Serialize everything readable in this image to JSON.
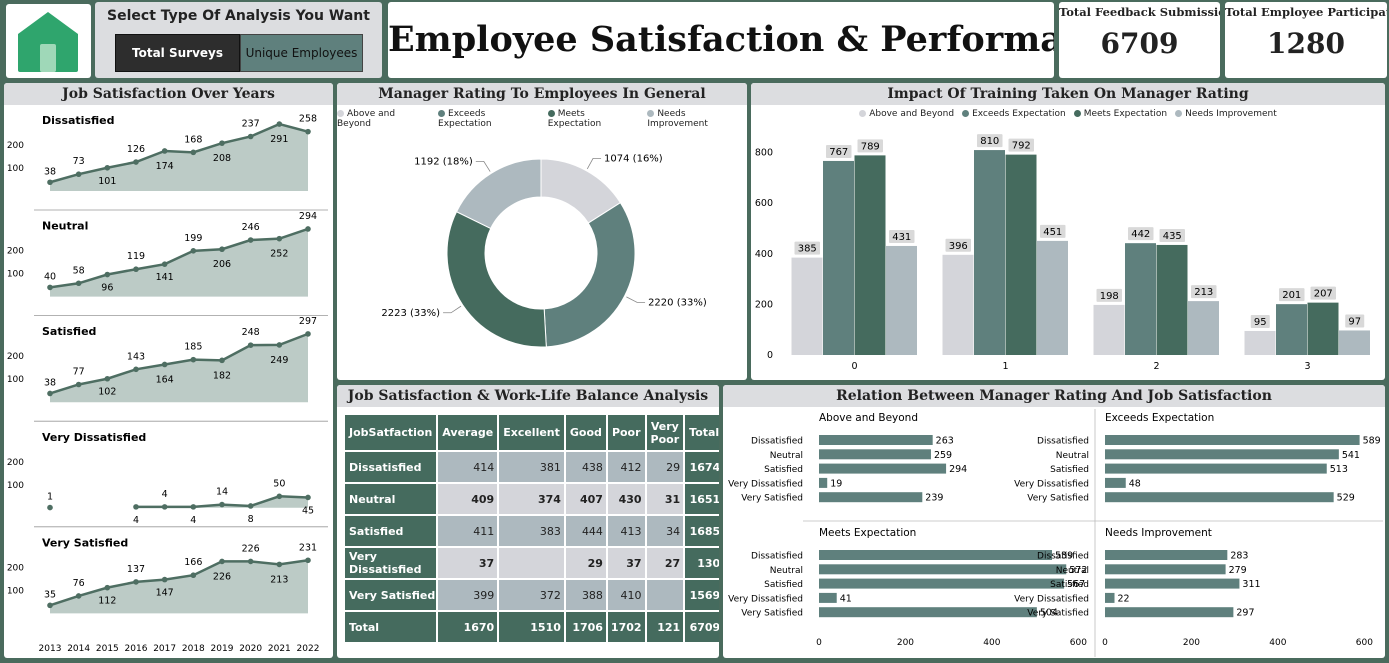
{
  "logo": {
    "icon": "home-icon"
  },
  "selector": {
    "title": "Select Type Of Analysis You Want",
    "options": [
      "Total Surveys",
      "Unique Employees"
    ],
    "selected": "Total Surveys"
  },
  "header": {
    "title": "Employee Satisfaction & Performance"
  },
  "kpis": [
    {
      "label": "Total Feedback Submissions",
      "value": "6709"
    },
    {
      "label": "Total Employee Participated",
      "value": "1280"
    }
  ],
  "colors": {
    "abb": "#d4d5da",
    "ee": "#5f807d",
    "me": "#456b5e",
    "ni": "#adb9bf",
    "area": "#bccbc6",
    "line": "#4e6e62",
    "header_bg": "#456b5e",
    "cell_light": "#adb9bf",
    "cell_dark": "#d4d5da"
  },
  "chart_data": [
    {
      "type": "area",
      "title": "Job Satisfaction Over Years",
      "x": [
        "2013",
        "2014",
        "2015",
        "2016",
        "2017",
        "2018",
        "2019",
        "2020",
        "2021",
        "2022"
      ],
      "yticks": [
        100,
        200
      ],
      "ylim": [
        0,
        320
      ],
      "series": [
        {
          "name": "Dissatisfied",
          "values": [
            38,
            73,
            101,
            126,
            174,
            168,
            208,
            237,
            291,
            258
          ]
        },
        {
          "name": "Neutral",
          "values": [
            40,
            58,
            96,
            119,
            141,
            199,
            206,
            246,
            252,
            294
          ]
        },
        {
          "name": "Satisfied",
          "values": [
            38,
            77,
            102,
            143,
            164,
            185,
            182,
            248,
            249,
            297
          ]
        },
        {
          "name": "Very Dissatisfied",
          "values": [
            1,
            null,
            4,
            4,
            4,
            14,
            8,
            50,
            45
          ],
          "x": [
            "2013",
            "2014",
            "2016",
            "2017",
            "2018",
            "2019",
            "2020",
            "2021",
            "2022"
          ]
        },
        {
          "name": "Very Satisfied",
          "values": [
            35,
            76,
            112,
            137,
            147,
            166,
            226,
            226,
            213,
            231
          ]
        }
      ]
    },
    {
      "type": "pie",
      "title": "Manager Rating To Employees In General",
      "categories": [
        "Above and Beyond",
        "Exceeds Expectation",
        "Meets Expectation",
        "Needs Improvement"
      ],
      "values": [
        1074,
        2220,
        2223,
        1192
      ],
      "labels": [
        "1074 (16%)",
        "2220 (33%)",
        "2223 (33%)",
        "1192 (18%)"
      ]
    },
    {
      "type": "bar",
      "title": "Impact Of Training Taken On Manager Rating",
      "categories": [
        "0",
        "1",
        "2",
        "3"
      ],
      "ylim": [
        0,
        900
      ],
      "yticks": [
        0,
        200,
        400,
        600,
        800
      ],
      "series": [
        {
          "name": "Above and Beyond",
          "values": [
            385,
            396,
            198,
            95
          ]
        },
        {
          "name": "Exceeds Expectation",
          "values": [
            767,
            810,
            442,
            201
          ]
        },
        {
          "name": "Meets Expectation",
          "values": [
            789,
            792,
            435,
            207
          ]
        },
        {
          "name": "Needs Improvement",
          "values": [
            431,
            451,
            213,
            97
          ]
        }
      ]
    },
    {
      "type": "table",
      "title": "Job Satisfaction & Work-Life Balance Analysis",
      "columns": [
        "JobSatfaction",
        "Average",
        "Excellent",
        "Good",
        "Poor",
        "Very Poor",
        "Total"
      ],
      "rows": [
        [
          "Dissatisfied",
          "414",
          "381",
          "438",
          "412",
          "29",
          "1674"
        ],
        [
          "Neutral",
          "409",
          "374",
          "407",
          "430",
          "31",
          "1651"
        ],
        [
          "Satisfied",
          "411",
          "383",
          "444",
          "413",
          "34",
          "1685"
        ],
        [
          "Very Dissatisfied",
          "37",
          "",
          "29",
          "37",
          "27",
          "130"
        ],
        [
          "Very Satisfied",
          "399",
          "372",
          "388",
          "410",
          "",
          "1569"
        ]
      ],
      "total": [
        "Total",
        "1670",
        "1510",
        "1706",
        "1702",
        "121",
        "6709"
      ]
    },
    {
      "type": "bar",
      "title": "Relation Between Manager Rating And Job Satisfaction",
      "categories": [
        "Dissatisfied",
        "Neutral",
        "Satisfied",
        "Very Dissatisfied",
        "Very Satisfied"
      ],
      "xlim": [
        0,
        620
      ],
      "xticks": [
        0,
        200,
        400,
        600
      ],
      "facets": [
        {
          "name": "Above and Beyond",
          "values": [
            263,
            259,
            294,
            19,
            239
          ]
        },
        {
          "name": "Exceeds Expectation",
          "values": [
            589,
            541,
            513,
            48,
            529
          ]
        },
        {
          "name": "Meets Expectation",
          "values": [
            539,
            572,
            567,
            41,
            504
          ]
        },
        {
          "name": "Needs Improvement",
          "values": [
            283,
            279,
            311,
            22,
            297
          ]
        }
      ]
    }
  ]
}
